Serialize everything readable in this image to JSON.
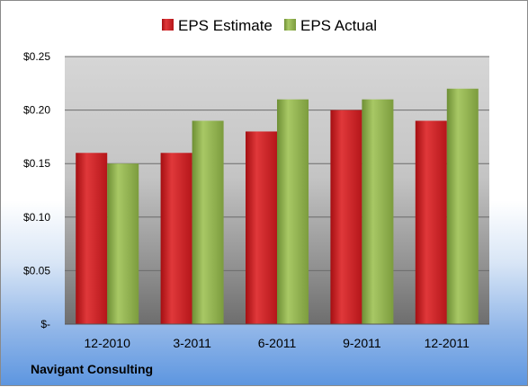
{
  "chart_data": {
    "type": "bar",
    "categories": [
      "12-2010",
      "3-2011",
      "6-2011",
      "9-2011",
      "12-2011"
    ],
    "series": [
      {
        "name": "EPS Estimate",
        "values": [
          0.16,
          0.16,
          0.18,
          0.2,
          0.19
        ],
        "color": "#cc1f1f"
      },
      {
        "name": "EPS Actual",
        "values": [
          0.15,
          0.19,
          0.21,
          0.21,
          0.22
        ],
        "color": "#8cb04a"
      }
    ],
    "ylim": [
      0,
      0.25
    ],
    "yticks": [
      0,
      0.05,
      0.1,
      0.15,
      0.2,
      0.25
    ],
    "ytick_labels": [
      "$-",
      "$0.05",
      "$0.10",
      "$0.15",
      "$0.20",
      "$0.25"
    ],
    "grid": true,
    "legend_position": "top"
  },
  "footer": {
    "source_label": "Navigant Consulting"
  }
}
